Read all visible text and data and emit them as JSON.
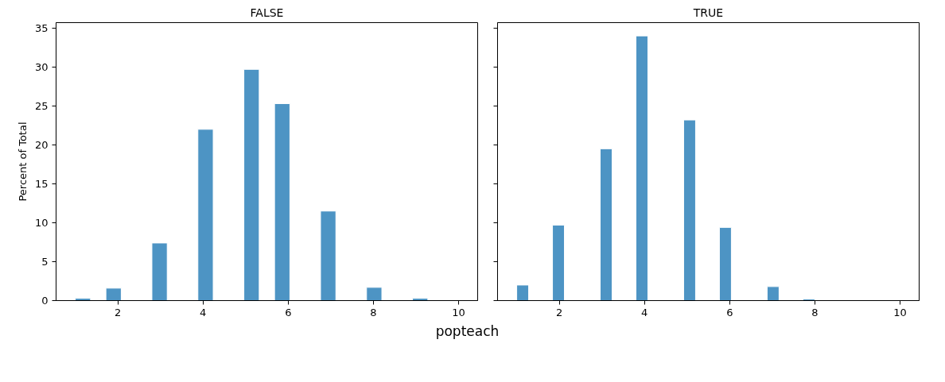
{
  "chart_data": [
    {
      "type": "histogram",
      "title": "FALSE",
      "xlabel": "popteach",
      "ylabel": "Percent of Total",
      "color": "#4d94c4",
      "bins": [
        1,
        1.36,
        1.72,
        2.08,
        2.44,
        2.8,
        3.16,
        3.52,
        3.88,
        4.24,
        4.6,
        4.96,
        5.32,
        5.68,
        6.04,
        6.4,
        6.76,
        7.12,
        7.48,
        7.84,
        8.2,
        8.56,
        8.92,
        9.28,
        9.64,
        10
      ],
      "values": [
        0.3,
        0,
        1.6,
        0,
        0,
        7.4,
        0,
        0,
        22.0,
        0,
        0,
        29.7,
        0,
        25.3,
        0,
        0,
        11.5,
        0,
        0,
        1.7,
        0,
        0,
        0.3,
        0,
        null
      ],
      "xlim": [
        0.55,
        10.45
      ],
      "ylim": [
        0,
        35.7
      ],
      "xticks": [
        2,
        4,
        6,
        8,
        10
      ],
      "yticks": [
        0,
        5,
        10,
        15,
        20,
        25,
        30,
        35
      ],
      "grid": false
    },
    {
      "type": "histogram",
      "title": "TRUE",
      "color": "#4d94c4",
      "bins": [
        1,
        1.28,
        1.56,
        1.84,
        2.12,
        2.4,
        2.68,
        2.96,
        3.24,
        3.52,
        3.8,
        4.08,
        4.36,
        4.64,
        4.92,
        5.2,
        5.48,
        5.76,
        6.04,
        6.32,
        6.6,
        6.88,
        7.16,
        7.44,
        7.72,
        8
      ],
      "values": [
        2.0,
        0,
        0,
        9.7,
        0,
        0,
        0,
        19.5,
        0,
        0,
        34.0,
        0,
        0,
        0,
        23.2,
        0,
        0,
        9.4,
        0,
        0,
        0,
        1.8,
        0,
        0,
        0.2
      ],
      "xlim": [
        0.55,
        10.45
      ],
      "ylim": [
        0,
        35.7
      ],
      "xticks": [
        2,
        4,
        6,
        8,
        10
      ],
      "yticks": [
        0,
        5,
        10,
        15,
        20,
        25,
        30,
        35
      ],
      "grid": false,
      "tick_labels": "x"
    }
  ]
}
